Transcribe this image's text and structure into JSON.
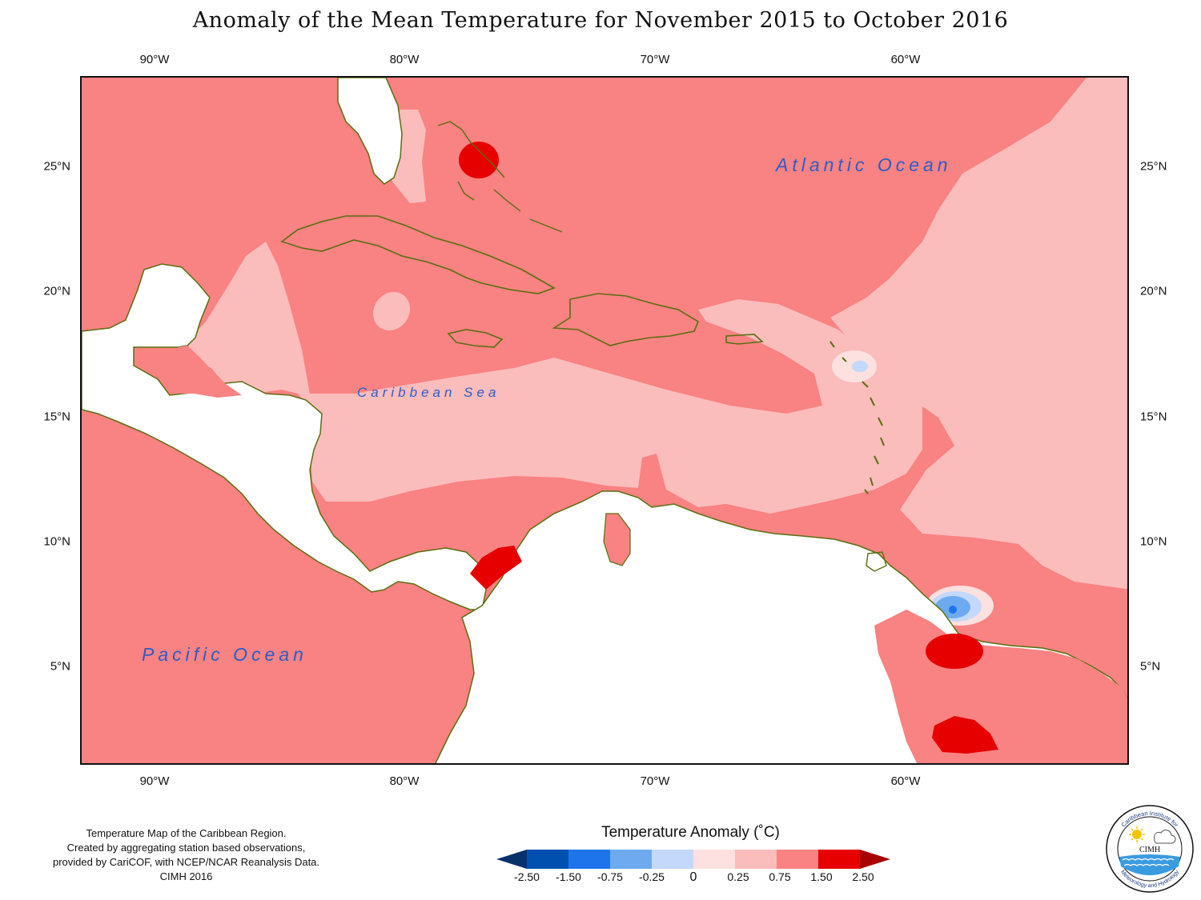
{
  "title": "Anomaly of the Mean Temperature for November 2015 to October 2016",
  "longitude_ticks": [
    "90°W",
    "80°W",
    "70°W",
    "60°W"
  ],
  "latitude_ticks": [
    "25°N",
    "20°N",
    "15°N",
    "10°N",
    "5°N"
  ],
  "ocean_labels": {
    "atlantic": "Atlantic Ocean",
    "caribbean": "Caribbean Sea",
    "pacific": "Pacific Ocean"
  },
  "credits": [
    "Temperature Map of the Caribbean Region.",
    "Created by aggregating station based observations,",
    "provided by CariCOF, with NCEP/NCAR Reanalysis Data.",
    "CIMH 2016"
  ],
  "legend": {
    "title": "Temperature Anomaly (˚C)",
    "labels": [
      "-2.50",
      "-1.50",
      "-0.75",
      "-0.25",
      "0",
      "0.25",
      "0.75",
      "1.50",
      "2.50"
    ],
    "colors": [
      "#08306b",
      "#0050b0",
      "#1e74ea",
      "#6eaaf0",
      "#c3d8fa",
      "#fde0e0",
      "#fbbcbc",
      "#f98282",
      "#e60000",
      "#a80000"
    ]
  },
  "colors": {
    "anomaly_0_75_to_1_50": "#f98282",
    "anomaly_0_25_to_0_75": "#fbbcbc",
    "anomaly_0_to_0_25": "#fde0e0",
    "anomaly_1_50_to_2_50": "#e60000",
    "anomaly_neg_0_25_to_0": "#c3d8fa",
    "anomaly_neg_0_75_to_neg_0_25": "#6eaaf0",
    "anomaly_neg_1_50_to_neg_0_75": "#1e74ea",
    "coastline": "#5a6e10",
    "ocean_label": "#2a5ec8"
  },
  "logo": {
    "arc_text_top": "Caribbean Institute for",
    "arc_text_bottom": "Meteorology and Hydrology",
    "acronym": "CIMH",
    "icons": [
      "sun-icon",
      "cloud-icon",
      "waves-icon"
    ]
  }
}
